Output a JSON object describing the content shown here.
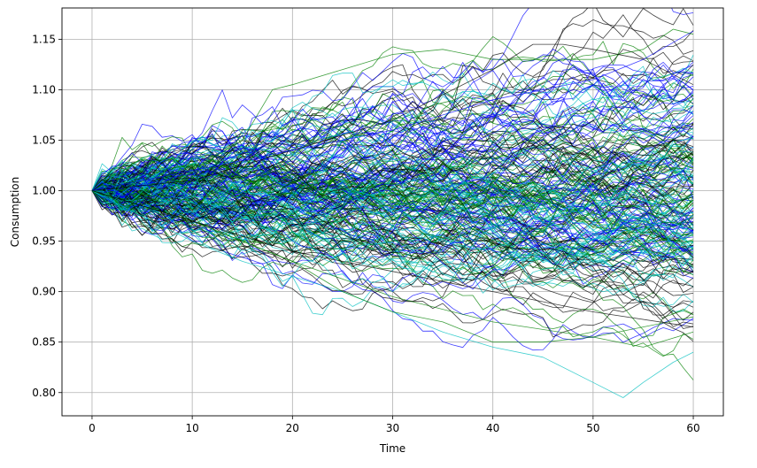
{
  "chart_data": {
    "type": "line",
    "title": "",
    "xlabel": "Time",
    "ylabel": "Consumption",
    "xlim": [
      -3,
      63
    ],
    "ylim": [
      0.777,
      1.181
    ],
    "x_ticks": [
      0,
      10,
      20,
      30,
      40,
      50,
      60
    ],
    "x_tick_labels": [
      "0",
      "10",
      "20",
      "30",
      "40",
      "50",
      "60"
    ],
    "y_ticks": [
      0.8,
      0.85,
      0.9,
      0.95,
      1.0,
      1.05,
      1.1,
      1.15
    ],
    "y_tick_labels": [
      "0.80",
      "0.85",
      "0.90",
      "0.95",
      "1.00",
      "1.05",
      "1.10",
      "1.15"
    ],
    "grid": true,
    "legend": "none",
    "series_colors": [
      "#0000ff",
      "#008000",
      "#000000",
      "#00bfbf"
    ],
    "simulation": {
      "n_paths": 240,
      "n_steps": 60,
      "start_value": 1.0,
      "seed": 7
    },
    "highlighted_paths": [
      {
        "color": "#00bfbf",
        "x": [
          0,
          5,
          10,
          15,
          20,
          25,
          30,
          35,
          40,
          45,
          50,
          53,
          55,
          58,
          60
        ],
        "y": [
          1.0,
          0.975,
          0.95,
          0.93,
          0.915,
          0.9,
          0.88,
          0.86,
          0.845,
          0.835,
          0.81,
          0.795,
          0.81,
          0.83,
          0.84
        ]
      },
      {
        "color": "#008000",
        "x": [
          0,
          5,
          10,
          15,
          18,
          20,
          25,
          30,
          35,
          40,
          45,
          50,
          55,
          58,
          60
        ],
        "y": [
          1.0,
          1.01,
          1.02,
          1.05,
          1.1,
          1.105,
          1.12,
          1.135,
          1.14,
          1.13,
          1.13,
          1.13,
          1.14,
          1.16,
          1.155
        ]
      },
      {
        "color": "#000000",
        "x": [
          0,
          10,
          20,
          30,
          40,
          44,
          47,
          50,
          55,
          60
        ],
        "y": [
          1.0,
          1.01,
          1.04,
          1.07,
          1.12,
          1.145,
          1.145,
          1.14,
          1.13,
          1.105
        ]
      },
      {
        "color": "#0000ff",
        "x": [
          0,
          10,
          20,
          30,
          40,
          50,
          55,
          60
        ],
        "y": [
          1.0,
          1.02,
          1.04,
          1.06,
          1.09,
          1.11,
          1.13,
          1.158
        ]
      },
      {
        "color": "#008000",
        "x": [
          0,
          10,
          20,
          25,
          30,
          35,
          40,
          45,
          50,
          55,
          60
        ],
        "y": [
          1.0,
          0.97,
          0.93,
          0.9,
          0.88,
          0.87,
          0.85,
          0.85,
          0.855,
          0.845,
          0.86
        ]
      },
      {
        "color": "#008000",
        "x": [
          0,
          10,
          20,
          30,
          40,
          50,
          60
        ],
        "y": [
          1.0,
          0.97,
          0.93,
          0.895,
          0.87,
          0.855,
          0.875
        ]
      },
      {
        "color": "#000000",
        "x": [
          0,
          10,
          20,
          30,
          40,
          50,
          60
        ],
        "y": [
          1.0,
          0.97,
          0.94,
          0.92,
          0.9,
          0.88,
          0.865
        ]
      }
    ]
  }
}
